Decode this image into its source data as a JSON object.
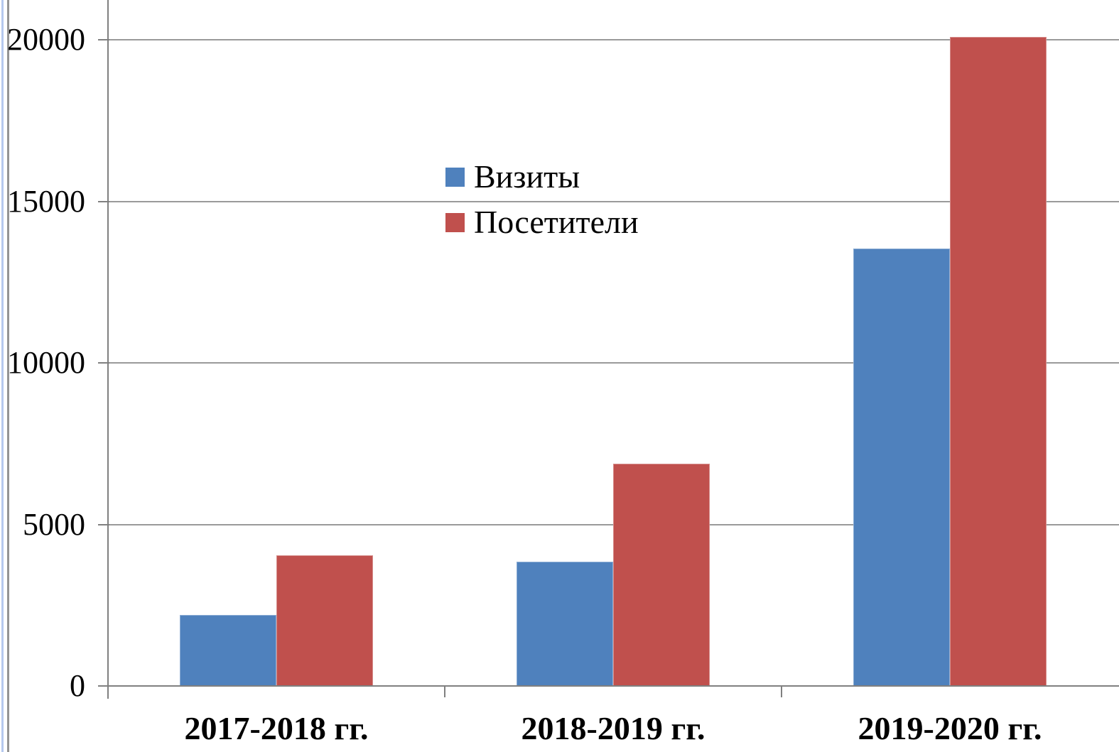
{
  "page": {
    "background_color": "#ffffff",
    "left_edge_line_blue_color": "#b5c8ee",
    "left_edge_line_gray_color": "#949494",
    "axis_color": "#808080",
    "gridline_color": "#9a9a9a",
    "text_color": "#000000"
  },
  "chart_data": {
    "type": "bar",
    "title": "",
    "categories": [
      "2017-2018 гг.",
      "2018-2019 гг.",
      "2019-2020 гг."
    ],
    "series": [
      {
        "name": "Визиты",
        "color": "#4F81BD",
        "values": [
          2200,
          3850,
          13540
        ]
      },
      {
        "name": "Посетители",
        "color": "#C0504D",
        "values": [
          4050,
          6870,
          20090
        ]
      }
    ],
    "xlabel": "",
    "ylabel": "",
    "y_axis": {
      "min": 0,
      "max_visible": 21250,
      "ticks": [
        0,
        5000,
        10000,
        15000,
        20000
      ],
      "tick_labels": [
        "0",
        "5000",
        "10000",
        "15000",
        "20000"
      ]
    },
    "grid": "horizontal",
    "legend": {
      "position": "upper-center",
      "transparent_background": true,
      "entries": [
        "Визиты",
        "Посетители"
      ]
    }
  }
}
